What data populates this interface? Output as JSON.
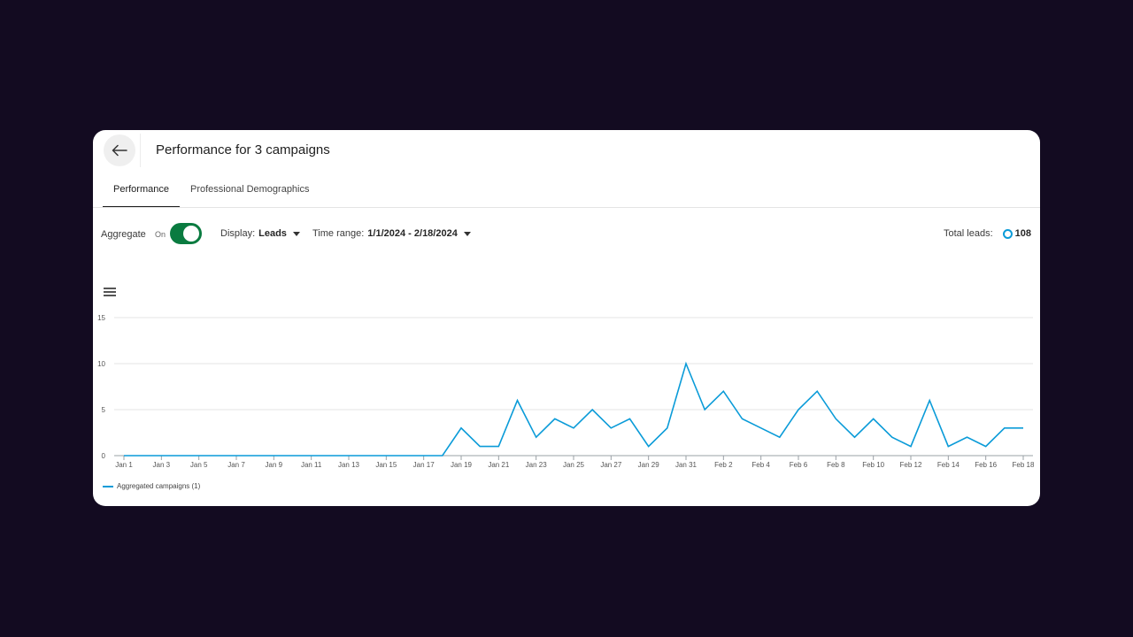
{
  "header": {
    "title": "Performance for 3 campaigns",
    "back_icon": "arrow-left-icon"
  },
  "tabs": [
    {
      "label": "Performance",
      "active": true
    },
    {
      "label": "Professional Demographics",
      "active": false
    }
  ],
  "toolbar": {
    "aggregate_label": "Aggregate",
    "aggregate_state": "On",
    "display_label": "Display:",
    "display_value": "Leads",
    "time_range_label": "Time range:",
    "time_range_value": "1/1/2024 - 2/18/2024",
    "total_label": "Total leads:",
    "total_value": "108"
  },
  "colors": {
    "accent": "#0a9bd8",
    "toggle_on": "#0a7b40",
    "background": "#130b21"
  },
  "chart_data": {
    "type": "line",
    "title": "",
    "xlabel": "",
    "ylabel": "",
    "ylim": [
      0,
      15
    ],
    "yticks": [
      "0",
      "5",
      "10",
      "15"
    ],
    "xtick_labels": [
      "Jan 1",
      "Jan 3",
      "Jan 5",
      "Jan 7",
      "Jan 9",
      "Jan 11",
      "Jan 13",
      "Jan 15",
      "Jan 17",
      "Jan 19",
      "Jan 21",
      "Jan 23",
      "Jan 25",
      "Jan 27",
      "Jan 29",
      "Jan 31",
      "Feb 2",
      "Feb 4",
      "Feb 6",
      "Feb 8",
      "Feb 10",
      "Feb 12",
      "Feb 14",
      "Feb 16",
      "Feb 18"
    ],
    "categories": [
      "Jan 1",
      "Jan 2",
      "Jan 3",
      "Jan 4",
      "Jan 5",
      "Jan 6",
      "Jan 7",
      "Jan 8",
      "Jan 9",
      "Jan 10",
      "Jan 11",
      "Jan 12",
      "Jan 13",
      "Jan 14",
      "Jan 15",
      "Jan 16",
      "Jan 17",
      "Jan 18",
      "Jan 19",
      "Jan 20",
      "Jan 21",
      "Jan 22",
      "Jan 23",
      "Jan 24",
      "Jan 25",
      "Jan 26",
      "Jan 27",
      "Jan 28",
      "Jan 29",
      "Jan 30",
      "Jan 31",
      "Feb 1",
      "Feb 2",
      "Feb 3",
      "Feb 4",
      "Feb 5",
      "Feb 6",
      "Feb 7",
      "Feb 8",
      "Feb 9",
      "Feb 10",
      "Feb 11",
      "Feb 12",
      "Feb 13",
      "Feb 14",
      "Feb 15",
      "Feb 16",
      "Feb 17",
      "Feb 18"
    ],
    "series": [
      {
        "name": "Aggregated campaigns (1)",
        "color": "#0a9bd8",
        "values": [
          0,
          0,
          0,
          0,
          0,
          0,
          0,
          0,
          0,
          0,
          0,
          0,
          0,
          0,
          0,
          0,
          0,
          0,
          3,
          1,
          1,
          6,
          2,
          4,
          3,
          5,
          3,
          4,
          1,
          3,
          10,
          5,
          7,
          4,
          3,
          2,
          5,
          7,
          4,
          2,
          4,
          2,
          1,
          6,
          1,
          2,
          1,
          3,
          3
        ]
      }
    ],
    "legend": "bottom-left"
  }
}
